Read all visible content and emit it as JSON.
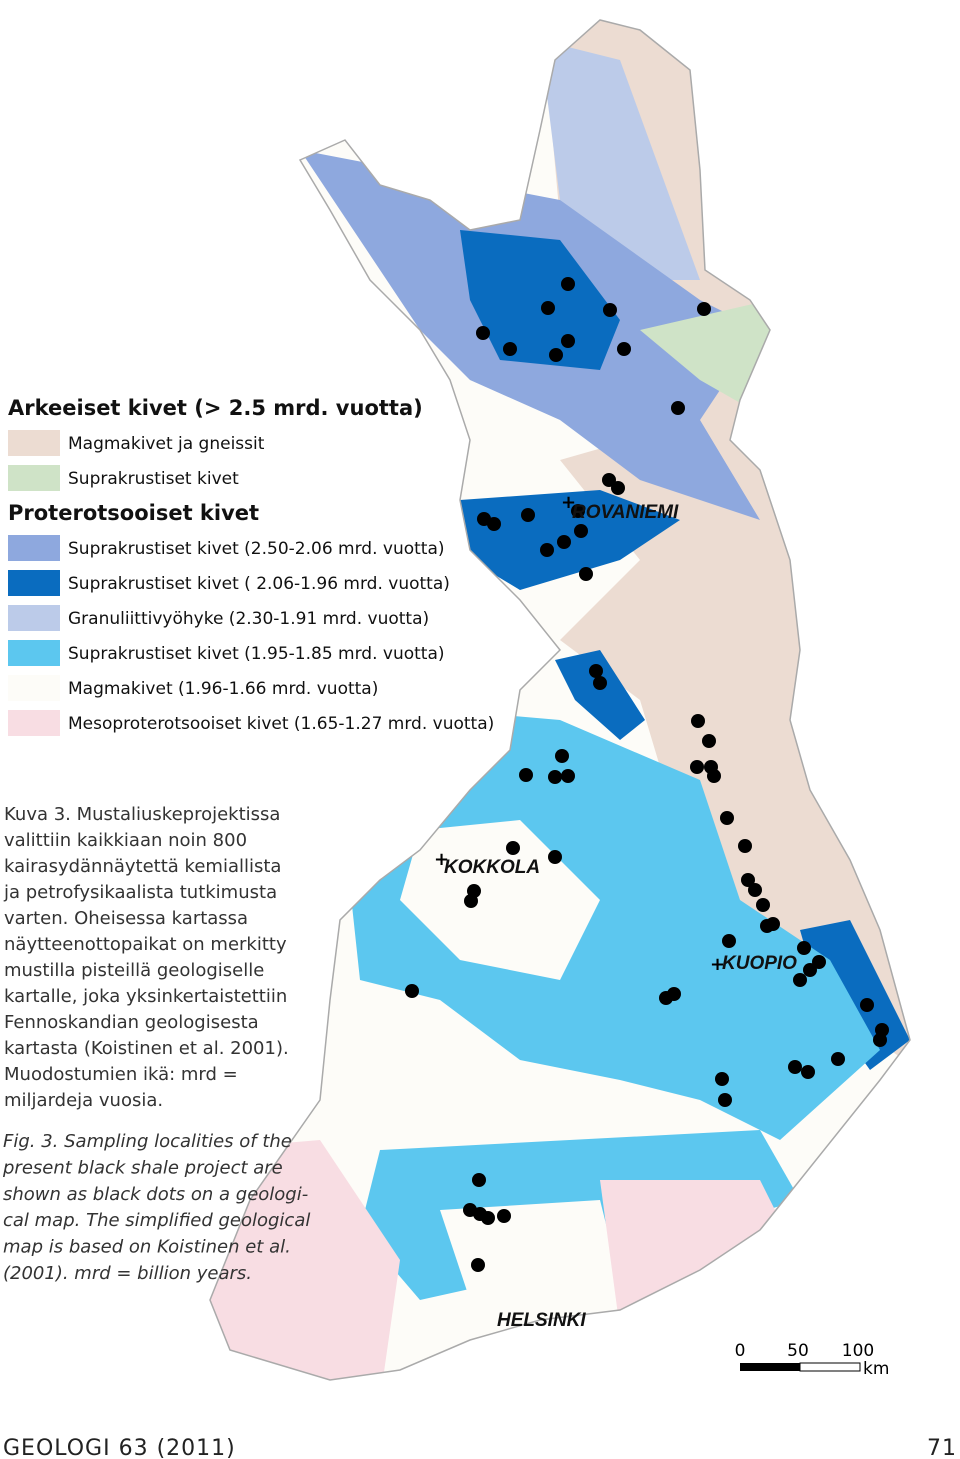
{
  "legend": [
    {
      "heading": "Arkeeiset kivet (> 2.5 mrd. vuotta)",
      "items": [
        {
          "label": "Magmakivet ja gneissit",
          "color": "#ecdcd2"
        },
        {
          "label": "Suprakrustiset kivet",
          "color": "#cfe3c7"
        }
      ]
    },
    {
      "heading": "Proterotsooiset kivet",
      "items": [
        {
          "label": "Suprakrustiset kivet (2.50-2.06 mrd. vuotta)",
          "color": "#8ea8de"
        },
        {
          "label": "Suprakrustiset kivet ( 2.06-1.96 mrd. vuotta)",
          "color": "#0a6cbf"
        },
        {
          "label": "Granuliittivyöhyke (2.30-1.91 mrd. vuotta)",
          "color": "#bccbe9"
        },
        {
          "label": "Suprakrustiset kivet (1.95-1.85 mrd. vuotta)",
          "color": "#5cc7ef"
        },
        {
          "label": "Magmakivet (1.96-1.66 mrd. vuotta)",
          "color": "#fdfcf8"
        },
        {
          "label": "Mesoproterotsooiset kivet (1.65-1.27 mrd. vuotta)",
          "color": "#f8dde3"
        }
      ]
    }
  ],
  "cities": [
    "ROVANIEMI",
    "KOKKOLA",
    "KUOPIO",
    "HELSINKI"
  ],
  "scale_bar": {
    "labels": [
      "0",
      "50",
      "100"
    ],
    "unit": "km"
  },
  "caption_fi": [
    "Kuva 3. Mustaliuskeprojektissa",
    "valittiin kaikkiaan noin 800",
    "kairasydännäytettä kemiallista",
    "ja petrofysikaalista tutkimusta",
    "varten. Oheisessa kartassa",
    "näytteenottopaikat on merkitty",
    "mustilla pisteillä geologiselle",
    "kartalle, joka yksinkertaistettiin",
    "Fennoskandian geologisesta",
    "kartasta (Koistinen et al. 2001).",
    "Muodostumien ikä: mrd =",
    "miljardeja vuosia."
  ],
  "caption_en": [
    "Fig. 3. Sampling localities of the",
    "present black shale project are",
    "shown as black dots on a geologi-",
    "cal map. The simplified geological",
    "map is based on Koistinen et al.",
    "(2001). mrd = billion years."
  ],
  "footer": {
    "journal": "GEOLOGI 63 (2011)",
    "page": "71"
  }
}
